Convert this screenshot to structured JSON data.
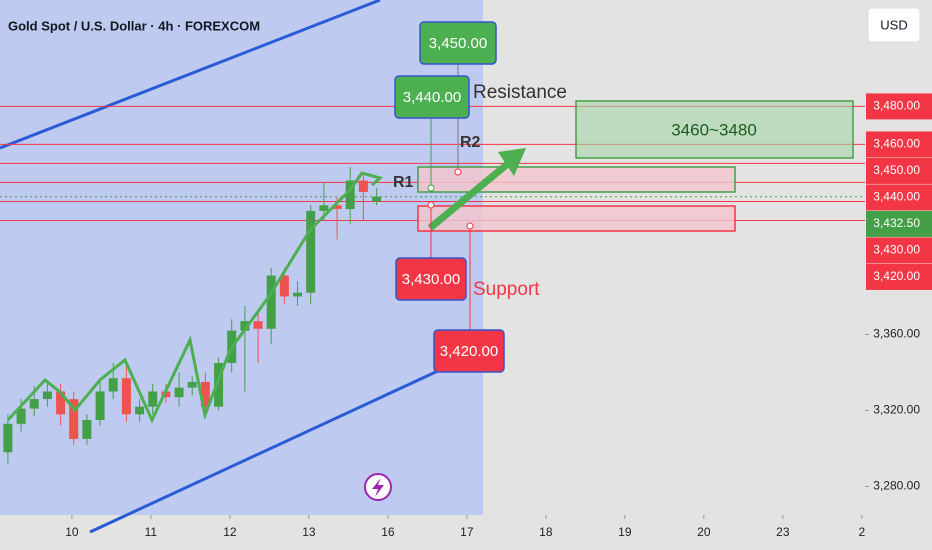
{
  "chart_data": {
    "type": "candlestick",
    "title": "Gold Spot / U.S. Dollar · 4h · FOREXCOM",
    "currency": "USD",
    "up_color": "#43a047",
    "down_color": "#ef5350",
    "xlim": [
      -0.91,
      10.04
    ],
    "xticks": [
      {
        "value": 0,
        "label": "10"
      },
      {
        "value": 1,
        "label": "11"
      },
      {
        "value": 2,
        "label": "12"
      },
      {
        "value": 3,
        "label": "13"
      },
      {
        "value": 4,
        "label": "16"
      },
      {
        "value": 5,
        "label": "17"
      },
      {
        "value": 6,
        "label": "18"
      },
      {
        "value": 7,
        "label": "19"
      },
      {
        "value": 8,
        "label": "20"
      },
      {
        "value": 9,
        "label": "23"
      },
      {
        "value": 10,
        "label": "2"
      }
    ],
    "ylim": [
      3265,
      3536
    ],
    "yticks": [
      {
        "value": 3280,
        "label": "3,280.00"
      },
      {
        "value": 3320,
        "label": "3,320.00"
      },
      {
        "value": 3360,
        "label": "3,360.00"
      }
    ],
    "horizontal_lines": [
      {
        "value": 3480,
        "label": "3,480.00"
      },
      {
        "value": 3460,
        "label": "3,460.00"
      },
      {
        "value": 3450,
        "label": "3,450.00"
      },
      {
        "value": 3440,
        "label": "3,440.00"
      },
      {
        "value": 3430,
        "label": "3,430.00"
      },
      {
        "value": 3420,
        "label": "3,420.00"
      }
    ],
    "line_color": "#f23645",
    "current_price": {
      "value": 3432.5,
      "label": "3,432.50"
    },
    "current_color": "#43a047",
    "x": [
      -0.81,
      -0.643,
      -0.477,
      -0.31,
      -0.143,
      0.023,
      0.19,
      0.357,
      0.523,
      0.69,
      0.857,
      1.023,
      1.19,
      1.357,
      1.523,
      1.69,
      1.857,
      2.023,
      2.19,
      2.357,
      2.523,
      2.69,
      2.857,
      3.023,
      3.19,
      3.357,
      3.523,
      3.69,
      3.857
    ],
    "open": [
      3298,
      3313,
      3321,
      3326,
      3330,
      3326,
      3305,
      3315,
      3330,
      3337,
      3318,
      3322,
      3330,
      3327,
      3332,
      3335,
      3322,
      3345,
      3362,
      3367,
      3363,
      3391,
      3380,
      3382,
      3425,
      3428,
      3426,
      3441,
      3430
    ],
    "high": [
      3318,
      3326,
      3333,
      3336,
      3334,
      3330,
      3318,
      3335,
      3345,
      3344,
      3326,
      3334,
      3334,
      3340,
      3338,
      3340,
      3348,
      3368,
      3375,
      3372,
      3395,
      3395,
      3388,
      3428,
      3440,
      3432,
      3448,
      3444,
      3437
    ],
    "low": [
      3292,
      3309,
      3317,
      3322,
      3312,
      3302,
      3302,
      3312,
      3326,
      3314,
      3314,
      3318,
      3324,
      3322,
      3328,
      3318,
      3320,
      3340,
      3330,
      3345,
      3355,
      3376,
      3375,
      3376,
      3420,
      3410,
      3418,
      3420,
      3428
    ],
    "close": [
      3313,
      3321,
      3326,
      3330,
      3318,
      3305,
      3315,
      3330,
      3337,
      3318,
      3322,
      3330,
      3327,
      3332,
      3335,
      3322,
      3345,
      3362,
      3367,
      3363,
      3391,
      3380,
      3382,
      3425,
      3428,
      3426,
      3441,
      3435,
      3432.5
    ],
    "annotations": {
      "target_high": "3,450.00",
      "target_low": "3,440.00",
      "resistance": "Resistance",
      "r2": "R2",
      "r1": "R1",
      "support_high": "3,430.00",
      "support": "Support",
      "support_low": "3,420.00",
      "zone": "3460~3480"
    }
  }
}
